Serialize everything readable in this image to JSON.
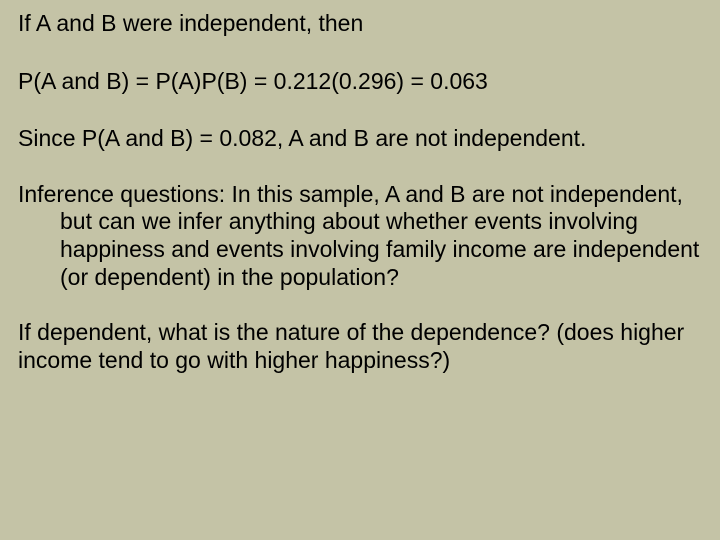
{
  "text_color": "#000000",
  "background_color": "#c4c3a6",
  "font_family": "Arial",
  "font_size_pt": 18,
  "paragraphs": {
    "p1": "If A and B were independent, then",
    "p2": "P(A and B) = P(A)P(B) = 0.212(0.296) = 0.063",
    "p3": "Since P(A and B) = 0.082, A and B are not independent.",
    "p4": "Inference questions: In this sample, A and B are not independent, but can we infer anything about whether events involving happiness and events involving family income are independent (or dependent) in the population?",
    "p5": "If dependent, what is the nature of the dependence? (does higher income tend to go with higher happiness?)"
  }
}
